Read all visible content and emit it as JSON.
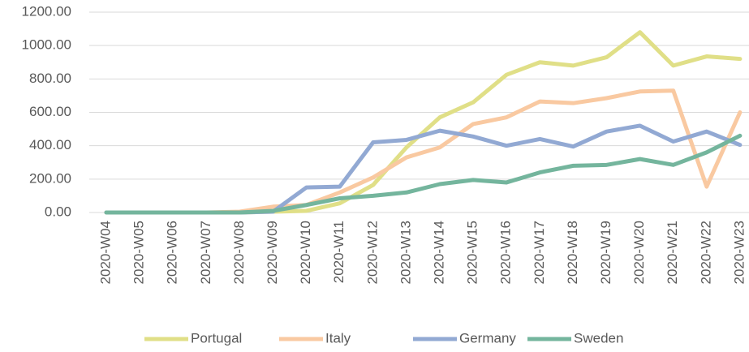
{
  "chart_data": {
    "type": "line",
    "categories": [
      "2020-W04",
      "2020-W05",
      "2020-W06",
      "2020-W07",
      "2020-W08",
      "2020-W09",
      "2020-W10",
      "2020-W11",
      "2020-W12",
      "2020-W13",
      "2020-W14",
      "2020-W15",
      "2020-W16",
      "2020-W17",
      "2020-W18",
      "2020-W19",
      "2020-W20",
      "2020-W21",
      "2020-W22",
      "2020-W23"
    ],
    "series": [
      {
        "name": "Portugal",
        "color": "#e0df87",
        "values": [
          0,
          0,
          0,
          0,
          0,
          5,
          10,
          55,
          165,
          390,
          570,
          660,
          825,
          900,
          880,
          930,
          1080,
          880,
          935,
          920
        ]
      },
      {
        "name": "Italy",
        "color": "#f9c9a1",
        "values": [
          0,
          0,
          0,
          0,
          5,
          35,
          45,
          120,
          210,
          330,
          390,
          530,
          570,
          665,
          655,
          685,
          725,
          730,
          155,
          600
        ]
      },
      {
        "name": "Germany",
        "color": "#92a9d3",
        "values": [
          0,
          0,
          0,
          0,
          0,
          5,
          150,
          155,
          420,
          435,
          490,
          455,
          400,
          440,
          395,
          485,
          520,
          425,
          485,
          405
        ]
      },
      {
        "name": "Sweden",
        "color": "#74b59d",
        "values": [
          0,
          0,
          0,
          0,
          0,
          10,
          45,
          85,
          100,
          120,
          170,
          195,
          180,
          240,
          280,
          285,
          320,
          285,
          360,
          460
        ]
      }
    ],
    "ylim": [
      0,
      1200
    ],
    "yticks": [
      {
        "value": 0,
        "label": "0.00"
      },
      {
        "value": 200,
        "label": "200.00"
      },
      {
        "value": 400,
        "label": "400.00"
      },
      {
        "value": 600,
        "label": "600.00"
      },
      {
        "value": 800,
        "label": "800.00"
      },
      {
        "value": 1000,
        "label": "1000.00"
      },
      {
        "value": 1200,
        "label": "1200.00"
      }
    ],
    "grid": true,
    "legend": "bottom"
  }
}
